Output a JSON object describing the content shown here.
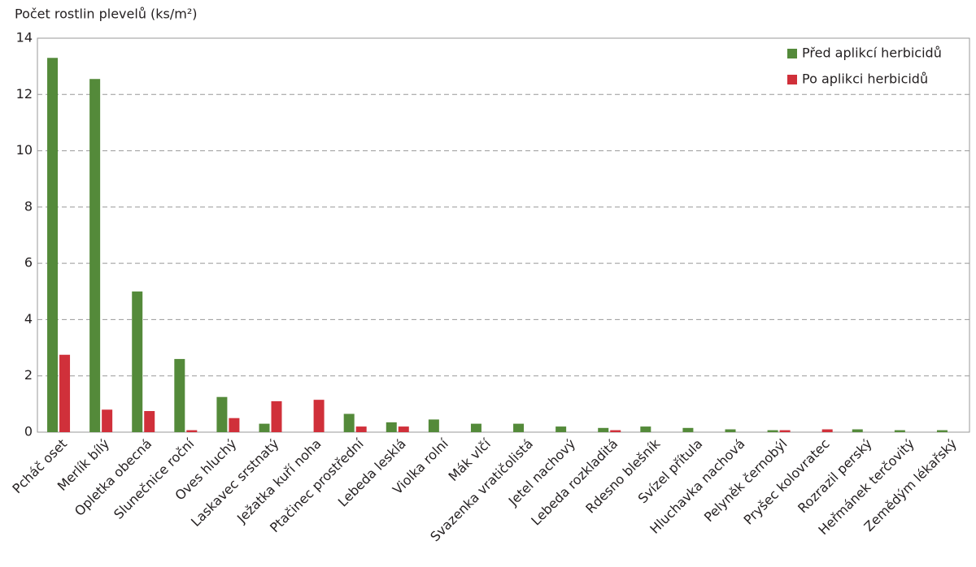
{
  "chart_data": {
    "type": "bar",
    "y_label": "Počet rostlin plevelů (ks/m²)",
    "categories": [
      "Pcháč oset",
      "Merlík bílý",
      "Opletka obecná",
      "Slunečnice roční",
      "Oves hluchý",
      "Laskavec srstnatý",
      "Ježatka kuří noha",
      "Ptačinec prostřední",
      "Lebeda lesklá",
      "Violka rolní",
      "Mák vlčí",
      "Svazenka vratičolistá",
      "Jetel nachový",
      "Lebeda rozkladitá",
      "Rdesno blešník",
      "Svízel přítula",
      "Hluchavka nachová",
      "Pelyněk černobýl",
      "Pryšec kolovratec",
      "Rozrazil perský",
      "Heřmánek terčovitý",
      "Zemědým lékařský"
    ],
    "series": [
      {
        "name": "Před aplikcí herbicidů",
        "color": "#548a3a",
        "values": [
          13.3,
          12.55,
          5.0,
          2.6,
          1.25,
          0.3,
          0,
          0.65,
          0.35,
          0.45,
          0.3,
          0.3,
          0.2,
          0.15,
          0.2,
          0.15,
          0.1,
          0.07,
          0,
          0.1,
          0.07,
          0.07
        ]
      },
      {
        "name": "Po aplikci herbicidů",
        "color": "#d0303a",
        "values": [
          2.75,
          0.8,
          0.75,
          0.07,
          0.5,
          1.1,
          1.15,
          0.2,
          0.2,
          0,
          0,
          0,
          0,
          0.07,
          0,
          0,
          0,
          0.07,
          0.1,
          0,
          0,
          0
        ]
      }
    ],
    "ylim": [
      0,
      14
    ],
    "yticks": [
      0,
      2,
      4,
      6,
      8,
      10,
      12,
      14
    ],
    "grid": true,
    "legend": "top-right"
  }
}
